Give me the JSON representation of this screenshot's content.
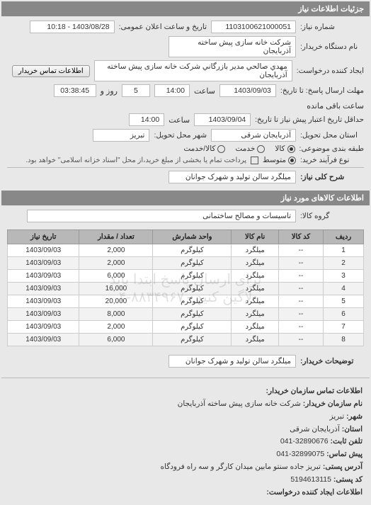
{
  "colors": {
    "section_header_bg": "#888888",
    "section_header_fg": "#ffffff",
    "field_bg": "#ffffff",
    "field_border": "#bbbbbb",
    "table_header_bg": "#b8b8b8",
    "row_alt_bg": "#f2f2f2",
    "page_bg": "#e8e8e8"
  },
  "header": {
    "title": "جزئیات اطلاعات نیاز"
  },
  "form": {
    "req_no_label": "شماره نیاز:",
    "req_no": "1103100621000051",
    "announce_label": "تاریخ و ساعت اعلان عمومی:",
    "announce_value": "1403/08/28 - 10:18",
    "org_label": "نام دستگاه خریدار:",
    "org_value": "شرکت خانه سازی پیش ساخته آذربایجان",
    "requester_label": "ایجاد کننده درخواست:",
    "requester_value": "مهدي صالحي مدير بازرگاني شرکت خانه سازی پیش ساخته آذربایجان",
    "contact_btn": "اطلاعات تماس خریدار",
    "deadline_send_label": "مهلت ارسال پاسخ: تا تاریخ:",
    "deadline_send_date": "1403/09/03",
    "time_label": "ساعت",
    "deadline_send_time": "14:00",
    "days_remaining": "5",
    "days_remaining_suffix": "روز و",
    "time_remaining": "03:38:45",
    "time_remaining_suffix": "ساعت باقی مانده",
    "validity_label": "حداقل تاریخ اعتبار پیش نیاز تا تاریخ:",
    "validity_date": "1403/09/04",
    "validity_time": "14:00",
    "province_label": "استان محل تحویل:",
    "province_value": "آذربایجان شرقی",
    "city_label": "شهر محل تحویل:",
    "city_value": "تبریز",
    "subject_class_label": "طبقه بندی موضوعی:",
    "subject_options": [
      {
        "label": "کالا",
        "checked": true
      },
      {
        "label": "خدمت",
        "checked": false
      },
      {
        "label": "کالا/خدمت",
        "checked": false
      }
    ],
    "process_type_label": "نوع فرآیند خرید:",
    "process_type_value": "متوسط",
    "checkbox_note": "پرداخت تمام یا بخشی از مبلغ خرید،از محل \"اسناد خزانه اسلامی\" خواهد بود.",
    "main_desc_label": "شرح کلی نیاز:",
    "main_desc_value": "میلگرد سالن تولید و شهرک جوانان"
  },
  "items": {
    "section_title": "اطلاعات کالاهای مورد نیاز",
    "group_label": "گروه کالا:",
    "group_value": "تاسیسات و مصالح ساختمانی",
    "columns": [
      "ردیف",
      "کد کالا",
      "نام کالا",
      "واحد شمارش",
      "تعداد / مقدار",
      "تاریخ نیاز"
    ],
    "rows": [
      {
        "n": 1,
        "code": "--",
        "name": "میلگرد",
        "unit": "کیلوگرم",
        "qty": "2,000",
        "date": "1403/09/03"
      },
      {
        "n": 2,
        "code": "--",
        "name": "میلگرد",
        "unit": "کیلوگرم",
        "qty": "2,000",
        "date": "1403/09/03"
      },
      {
        "n": 3,
        "code": "--",
        "name": "میلگرد",
        "unit": "کیلوگرم",
        "qty": "6,000",
        "date": "1403/09/03"
      },
      {
        "n": 4,
        "code": "--",
        "name": "میلگرد",
        "unit": "کیلوگرم",
        "qty": "16,000",
        "date": "1403/09/03"
      },
      {
        "n": 5,
        "code": "--",
        "name": "میلگرد",
        "unit": "کیلوگرم",
        "qty": "20,000",
        "date": "1403/09/03"
      },
      {
        "n": 6,
        "code": "--",
        "name": "میلگرد",
        "unit": "کیلوگرم",
        "qty": "8,000",
        "date": "1403/09/03"
      },
      {
        "n": 7,
        "code": "--",
        "name": "میلگرد",
        "unit": "کیلوگرم",
        "qty": "2,000",
        "date": "1403/09/03"
      },
      {
        "n": 8,
        "code": "--",
        "name": "میلگرد",
        "unit": "کیلوگرم",
        "qty": "6,000",
        "date": "1403/09/03"
      }
    ],
    "watermark_lines": [
      "برای ارسال پاسخ ابتدا باید",
      "لاگین کنید ۸۸۳۴۹۶۷۰-۴"
    ],
    "buyer_note_label": "توضیحات خریدار:",
    "buyer_note_value": "میلگرد سالن تولید و شهرک جوانان"
  },
  "contact": {
    "heading": "اطلاعات تماس سازمان خریدار:",
    "org_name_label": "نام سازمان خریدار:",
    "org_name": "شرکت خانه سازی پیش ساخته آذربایجان",
    "city_label": "شهر:",
    "city": "تبریز",
    "province_label": "استان:",
    "province": "آذربایجان شرقی",
    "phone_label": "تلفن ثابت:",
    "phone": "32890676-041",
    "fax_label": "پیش تماس:",
    "fax": "32899075-041",
    "address_label": "آدرس پستی:",
    "address": "تبریز جاده سنتو مابین میدان کارگر و سه راه فرودگاه",
    "postal_label": "کد پستی:",
    "postal": "5194613115",
    "requester_heading": "اطلاعات ایجاد کننده درخواست:"
  }
}
